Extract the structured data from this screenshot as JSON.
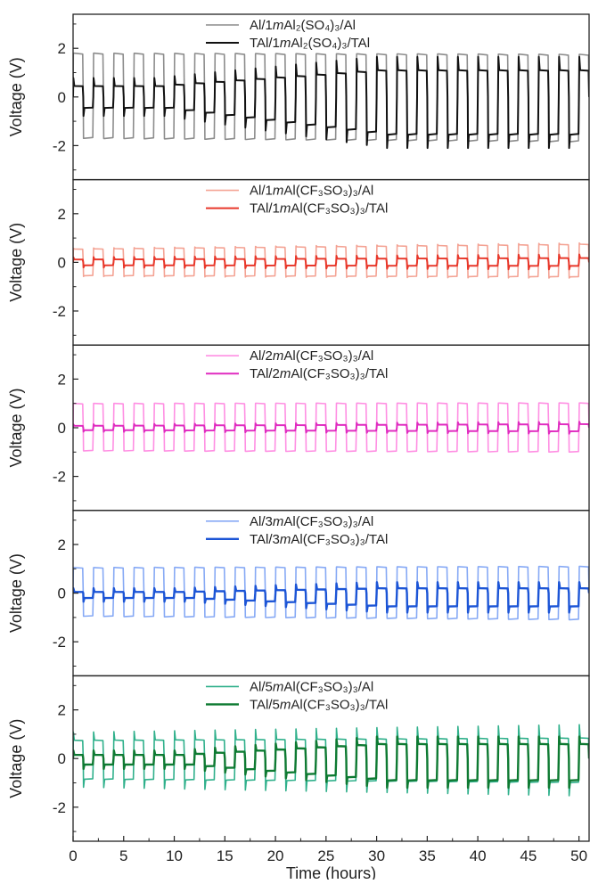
{
  "chart_data": {
    "type": "line",
    "xlabel": "Time (hours)",
    "ylabel": "Voltage (V)",
    "xlim": [
      0,
      51
    ],
    "ylim": [
      -3.4,
      3.4
    ],
    "x_ticks": [
      "0",
      "5",
      "10",
      "15",
      "20",
      "25",
      "30",
      "35",
      "40",
      "45",
      "50"
    ],
    "y_ticks": [
      "2",
      "0",
      "-2"
    ],
    "cycle_period_hours": 2,
    "panels": [
      {
        "legend": [
          {
            "prefix": "Al/1",
            "m": "m",
            "formula": "Al₂(SO₄)₃",
            "suffix": "/Al",
            "color": "#8c8c8c",
            "width": 1.6
          },
          {
            "prefix": "TAl/1",
            "m": "m",
            "formula": "Al₂(SO₄)₃",
            "suffix": "/TAl",
            "color": "#111111",
            "width": 2.0
          }
        ],
        "series": [
          {
            "color": "#8c8c8c",
            "width": 1.6,
            "plateau_start": 1.8,
            "plateau_end": 1.75,
            "low_start": -1.7,
            "low_end": -1.85,
            "spike": 0.0,
            "growth_from": 0,
            "growth_to": 0
          },
          {
            "color": "#111111",
            "width": 2.0,
            "plateau_start": 0.45,
            "plateau_end": 1.1,
            "low_start": -0.45,
            "low_end": -1.55,
            "spike": 0.55,
            "growth_from": 8,
            "growth_to": 30
          }
        ]
      },
      {
        "legend": [
          {
            "prefix": "Al/1",
            "m": "m",
            "formula": "Al(CF₃SO₃)₃",
            "suffix": "/Al",
            "color": "#f4a394",
            "width": 1.6
          },
          {
            "prefix": "TAl/1",
            "m": "m",
            "formula": "Al(CF₃SO₃)₃",
            "suffix": "/TAl",
            "color": "#e8372a",
            "width": 2.0
          }
        ],
        "series": [
          {
            "color": "#f4a394",
            "width": 1.6,
            "plateau_start": 0.55,
            "plateau_end": 0.75,
            "low_start": -0.55,
            "low_end": -0.6,
            "spike": 0.05,
            "growth_from": 0,
            "growth_to": 0
          },
          {
            "color": "#e8372a",
            "width": 2.0,
            "plateau_start": 0.12,
            "plateau_end": 0.18,
            "low_start": -0.12,
            "low_end": -0.15,
            "spike": 0.15,
            "growth_from": 0,
            "growth_to": 0
          }
        ]
      },
      {
        "legend": [
          {
            "prefix": "Al/2",
            "m": "m",
            "formula": "Al(CF₃SO₃)₃",
            "suffix": "/Al",
            "color": "#ff8fe3",
            "width": 1.6
          },
          {
            "prefix": "TAl/2",
            "m": "m",
            "formula": "Al(CF₃SO₃)₃",
            "suffix": "/TAl",
            "color": "#e02cc0",
            "width": 2.0
          }
        ],
        "series": [
          {
            "color": "#ff8fe3",
            "width": 1.6,
            "plateau_start": 1.0,
            "plateau_end": 1.02,
            "low_start": -0.95,
            "low_end": -1.0,
            "spike": 0.0,
            "growth_from": 0,
            "growth_to": 0
          },
          {
            "color": "#e02cc0",
            "width": 2.0,
            "plateau_start": 0.08,
            "plateau_end": 0.15,
            "low_start": -0.1,
            "low_end": -0.15,
            "spike": 0.1,
            "growth_from": 0,
            "growth_to": 0
          }
        ]
      },
      {
        "legend": [
          {
            "prefix": "Al/3",
            "m": "m",
            "formula": "Al(CF₃SO₃)₃",
            "suffix": "/Al",
            "color": "#86a9f5",
            "width": 1.6
          },
          {
            "prefix": "TAl/3",
            "m": "m",
            "formula": "Al(CF₃SO₃)₃",
            "suffix": "/TAl",
            "color": "#1c55d6",
            "width": 2.4
          }
        ],
        "series": [
          {
            "color": "#86a9f5",
            "width": 1.6,
            "plateau_start": 1.05,
            "plateau_end": 1.1,
            "low_start": -0.95,
            "low_end": -1.1,
            "spike": 0.0,
            "growth_from": 0,
            "growth_to": 0
          },
          {
            "color": "#1c55d6",
            "width": 2.4,
            "plateau_start": 0.05,
            "plateau_end": 0.2,
            "low_start": -0.2,
            "low_end": -0.55,
            "spike": 0.25,
            "growth_from": 10,
            "growth_to": 30
          }
        ]
      },
      {
        "legend": [
          {
            "prefix": "Al/5",
            "m": "m",
            "formula": "Al(CF₃SO₃)₃",
            "suffix": "/Al",
            "color": "#2fb08b",
            "width": 1.6
          },
          {
            "prefix": "TAl/5",
            "m": "m",
            "formula": "Al(CF₃SO₃)₃",
            "suffix": "/TAl",
            "color": "#0e7a32",
            "width": 2.4
          }
        ],
        "series": [
          {
            "color": "#2fb08b",
            "width": 1.6,
            "plateau_start": 0.75,
            "plateau_end": 0.85,
            "low_start": -0.85,
            "low_end": -1.0,
            "spike": 0.55,
            "growth_from": 0,
            "growth_to": 0
          },
          {
            "color": "#0e7a32",
            "width": 2.4,
            "plateau_start": 0.15,
            "plateau_end": 0.6,
            "low_start": -0.25,
            "low_end": -0.9,
            "spike": 0.3,
            "growth_from": 10,
            "growth_to": 30
          }
        ]
      }
    ]
  }
}
